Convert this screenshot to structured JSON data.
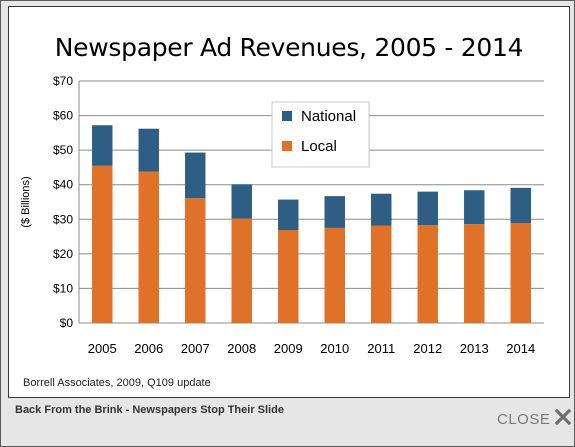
{
  "popup": {
    "caption": "Back From the Brink - Newspapers Stop Their Slide",
    "close_label": "CLOSE"
  },
  "chart_data": {
    "type": "bar",
    "stacked": true,
    "title": "Newspaper Ad Revenues, 2005 - 2014",
    "ylabel": "($ Billions)",
    "xlabel": "",
    "ylim": [
      0,
      70
    ],
    "yticks": [
      "$0",
      "$10",
      "$20",
      "$30",
      "$40",
      "$50",
      "$60",
      "$70"
    ],
    "grid": true,
    "legend_position": "top-center",
    "categories": [
      "2005",
      "2006",
      "2007",
      "2008",
      "2009",
      "2010",
      "2011",
      "2012",
      "2013",
      "2014"
    ],
    "series": [
      {
        "name": "Local",
        "color": "#e07129",
        "values": [
          45.5,
          43.8,
          36.1,
          30.2,
          26.9,
          27.5,
          28.2,
          28.3,
          28.6,
          28.9
        ]
      },
      {
        "name": "National",
        "color": "#2e5e84",
        "values": [
          11.7,
          12.4,
          13.2,
          9.9,
          8.8,
          9.2,
          9.2,
          9.7,
          9.8,
          10.2
        ]
      }
    ],
    "source": "Borrell Associates, 2009, Q109 update"
  }
}
